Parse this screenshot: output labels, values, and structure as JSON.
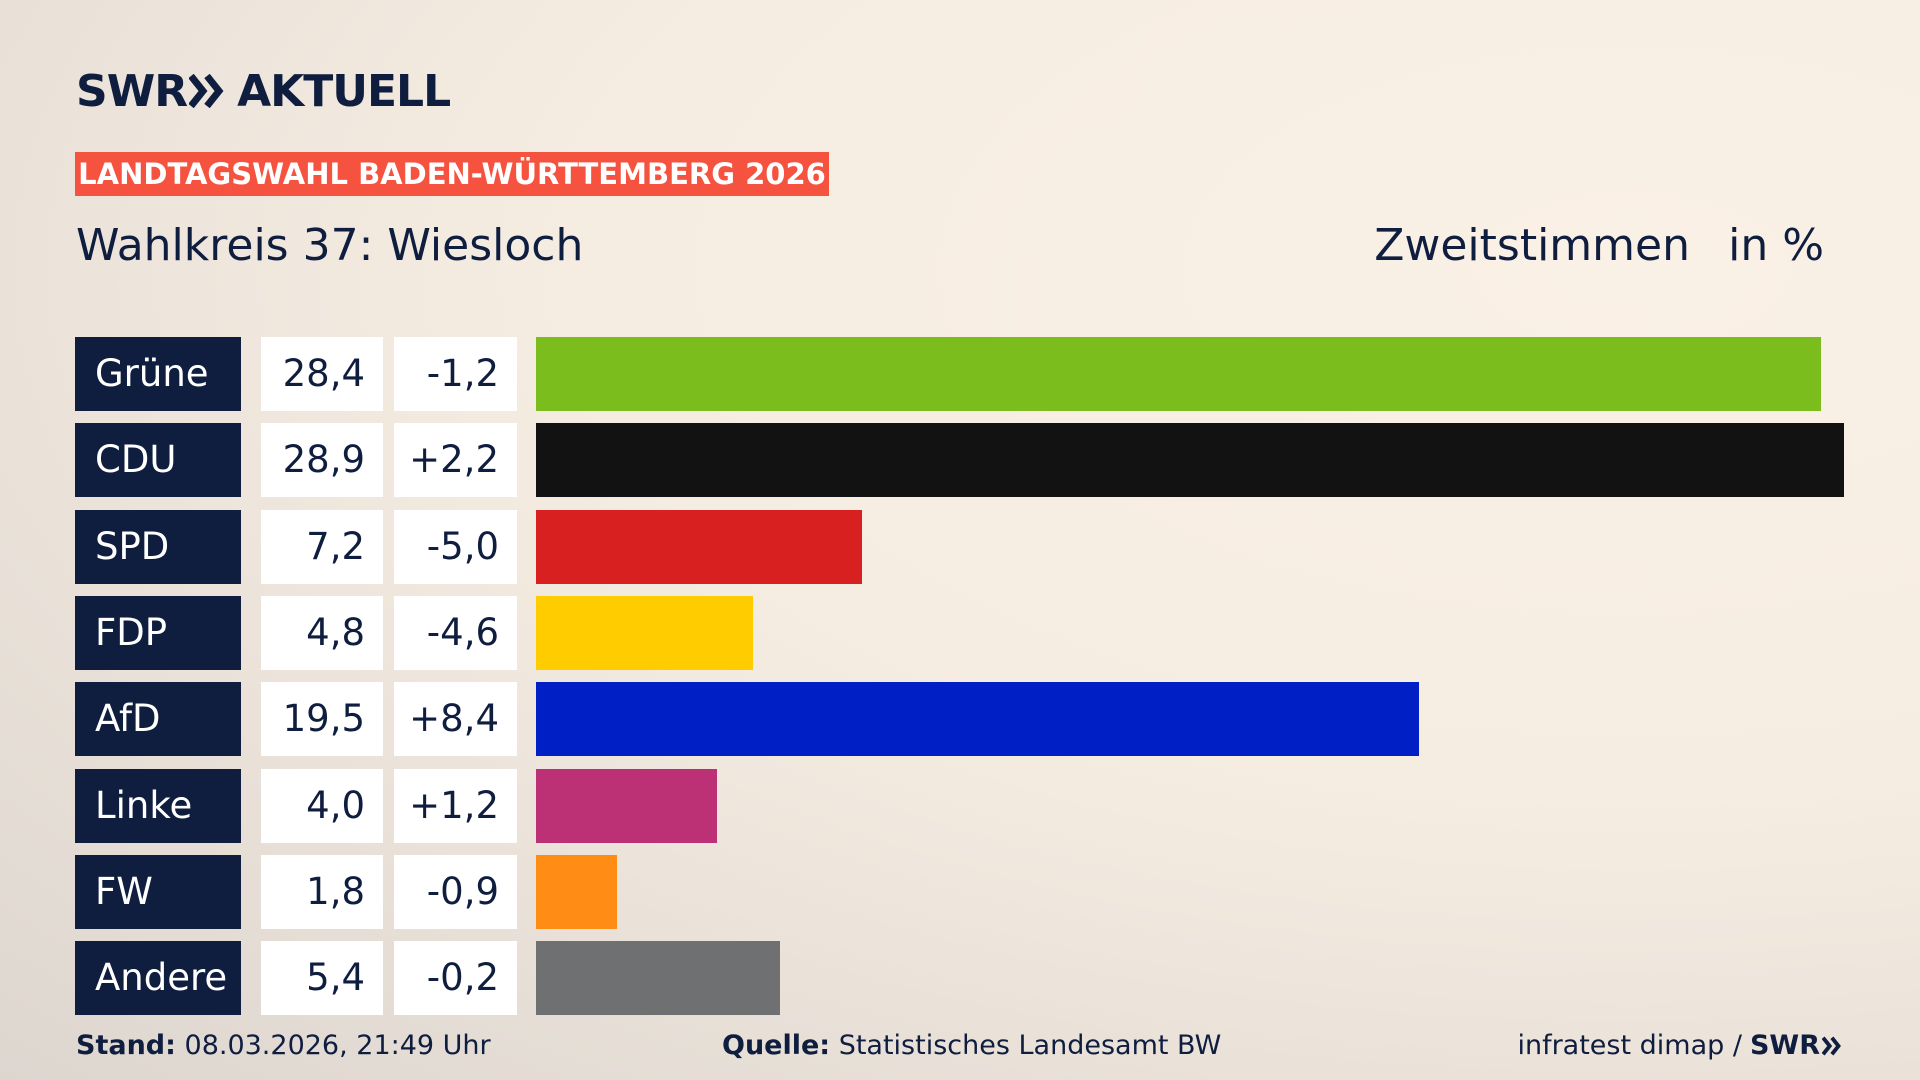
{
  "brand": {
    "name": "SWR",
    "product": "AKTUELL"
  },
  "chart_data": {
    "type": "bar",
    "kicker": "LANDTAGSWAHL BADEN-WÜRTTEMBERG 2026",
    "title": "Wahlkreis 37: Wiesloch",
    "measure": "Zweitstimmen",
    "unit": "in %",
    "categories": [
      "Grüne",
      "CDU",
      "SPD",
      "FDP",
      "AfD",
      "Linke",
      "FW",
      "Andere"
    ],
    "values": [
      28.4,
      28.9,
      7.2,
      4.8,
      19.5,
      4.0,
      1.8,
      5.4
    ],
    "value_labels": [
      "28,4",
      "28,9",
      "7,2",
      "4,8",
      "19,5",
      "4,0",
      "1,8",
      "5,4"
    ],
    "changes": [
      -1.2,
      2.2,
      -5.0,
      -4.6,
      8.4,
      1.2,
      -0.9,
      -0.2
    ],
    "change_labels": [
      "-1,2",
      "+2,2",
      "-5,0",
      "-4,6",
      "+8,4",
      "+1,2",
      "-0,9",
      "-0,2"
    ],
    "colors": [
      "#7abd1d",
      "#121212",
      "#d7201f",
      "#ffcc00",
      "#0020c5",
      "#bc3175",
      "#fe8c15",
      "#6f7072"
    ]
  },
  "footer": {
    "stand_label": "Stand:",
    "stand": "08.03.2026, 21:49 Uhr",
    "source_label": "Quelle:",
    "source": "Statistisches Landesamt BW",
    "credit": "infratest dimap /",
    "credit_brand": "SWR"
  }
}
